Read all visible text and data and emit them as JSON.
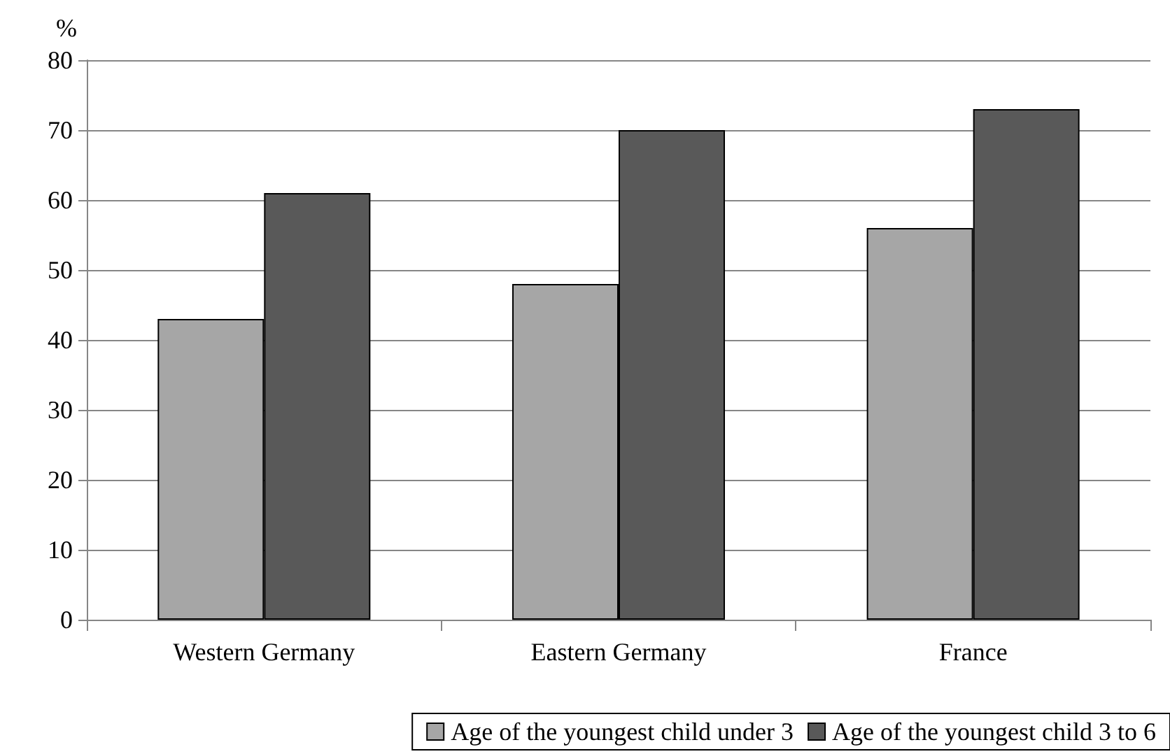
{
  "chart_data": {
    "type": "bar",
    "ylabel": "%",
    "categories": [
      "Western Germany",
      "Eastern Germany",
      "France"
    ],
    "series": [
      {
        "name": "Age of the youngest child under 3",
        "color": "#a6a6a6",
        "values": [
          43,
          48,
          56
        ]
      },
      {
        "name": "Age of the youngest child 3 to 6",
        "color": "#595959",
        "values": [
          61,
          70,
          73
        ]
      }
    ],
    "ylim": [
      0,
      80
    ],
    "yticks": [
      0,
      10,
      20,
      30,
      40,
      50,
      60,
      70,
      80
    ],
    "grid": "y",
    "legend": "bottom"
  }
}
